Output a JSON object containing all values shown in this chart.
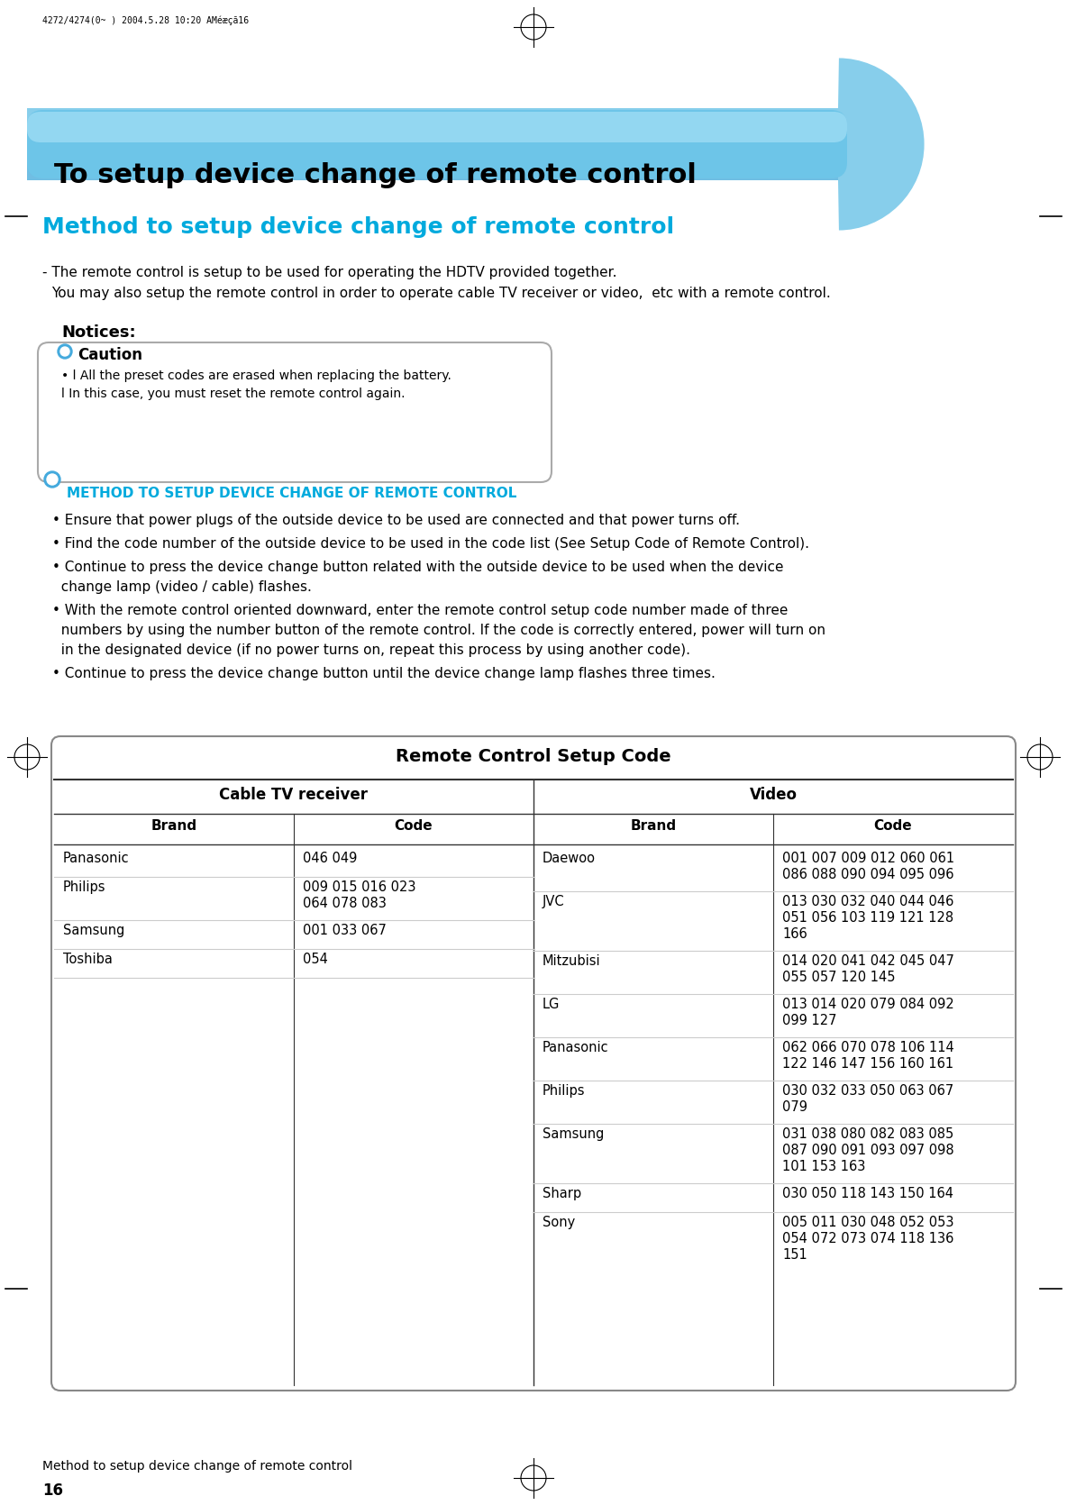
{
  "page_header": "4272/4274(0~ ) 2004.5.28 10:20 AMéæçã16",
  "title_banner": "To setup device change of remote control",
  "section_title": "Method to setup device change of remote control",
  "intro_lines": [
    "- The remote control is setup to be used for operating the HDTV provided together.",
    "  You may also setup the remote control in order to operate cable TV receiver or video,  etc with a remote control."
  ],
  "notices_title": "Notices:",
  "caution_label": "Caution",
  "caution_bullets": [
    "• l All the preset codes are erased when replacing the battery.",
    "  l In this case, you must reset the remote control again."
  ],
  "method_heading": "METHOD TO SETUP DEVICE CHANGE OF REMOTE CONTROL",
  "method_bullets": [
    "• Ensure that power plugs of the outside device to be used are connected and that power turns off.",
    "• Find the code number of the outside device to be used in the code list (See Setup Code of Remote Control).",
    "• Continue to press the device change button related with the outside device to be used when the device\n  change lamp (video / cable) flashes.",
    "• With the remote control oriented downward, enter the remote control setup code number made of three\n  numbers by using the number button of the remote control. If the code is correctly entered, power will turn on\n  in the designated device (if no power turns on, repeat this process by using another code).",
    "• Continue to press the device change button until the device change lamp flashes three times."
  ],
  "table_title": "Remote Control Setup Code",
  "cable_section": "Cable TV receiver",
  "video_section": "Video",
  "col_brand": "Brand",
  "col_code": "Code",
  "cable_data": [
    [
      "Panasonic",
      "046 049"
    ],
    [
      "Philips",
      "009 015 016 023\n064 078 083"
    ],
    [
      "Samsung",
      "001 033 067"
    ],
    [
      "Toshiba",
      "054"
    ]
  ],
  "video_data": [
    [
      "Daewoo",
      "001 007 009 012 060 061\n086 088 090 094 095 096"
    ],
    [
      "JVC",
      "013 030 032 040 044 046\n051 056 103 119 121 128\n166"
    ],
    [
      "Mitzubisi",
      "014 020 041 042 045 047\n055 057 120 145"
    ],
    [
      "LG",
      "013 014 020 079 084 092\n099 127"
    ],
    [
      "Panasonic",
      "062 066 070 078 106 114\n122 146 147 156 160 161"
    ],
    [
      "Philips",
      "030 032 033 050 063 067\n079"
    ],
    [
      "Samsung",
      "031 038 080 082 083 085\n087 090 091 093 097 098\n101 153 163"
    ],
    [
      "Sharp",
      "030 050 118 143 150 164"
    ],
    [
      "Sony",
      "005 011 030 048 052 053\n054 072 073 074 118 136\n151"
    ]
  ],
  "footer_text": "Method to setup device change of remote control",
  "page_number": "16",
  "bg_color": "#ffffff",
  "banner_color_top": "#87ceeb",
  "banner_color_bottom": "#5bb8e8",
  "cyan_color": "#00aadd",
  "table_border": "#333333"
}
